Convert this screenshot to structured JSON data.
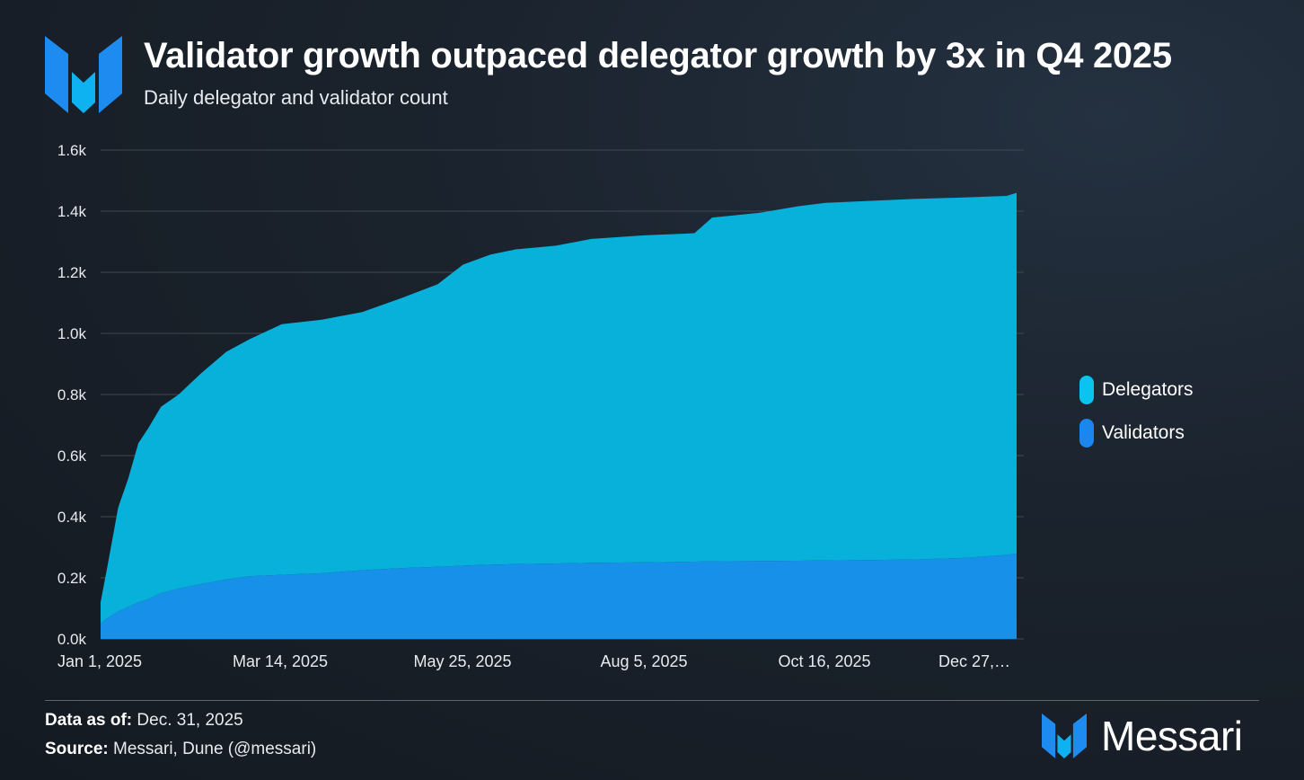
{
  "header": {
    "title": "Validator growth outpaced delegator growth by 3x in Q4 2025",
    "subtitle": "Daily delegator and validator count",
    "logo_icon": "messari-logo-icon"
  },
  "chart_data": {
    "type": "area",
    "stacked": true,
    "x": [
      "Jan 1, 2025",
      "Jan 4, 2025",
      "Jan 8, 2025",
      "Jan 12, 2025",
      "Jan 16, 2025",
      "Jan 20, 2025",
      "Jan 25, 2025",
      "Feb 1, 2025",
      "Feb 10, 2025",
      "Feb 20, 2025",
      "Mar 1, 2025",
      "Mar 14, 2025",
      "Mar 30, 2025",
      "Apr 15, 2025",
      "May 1, 2025",
      "May 15, 2025",
      "May 25, 2025",
      "Jun 5, 2025",
      "Jun 15, 2025",
      "Jul 1, 2025",
      "Jul 15, 2025",
      "Aug 5, 2025",
      "Aug 25, 2025",
      "Sep 1, 2025",
      "Sep 20, 2025",
      "Oct 5, 2025",
      "Oct 16, 2025",
      "Nov 1, 2025",
      "Nov 20, 2025",
      "Dec 10, 2025",
      "Dec 27, 2025",
      "Dec 31, 2025"
    ],
    "series": [
      {
        "name": "Validators",
        "color": "#1690e8",
        "values": [
          50,
          70,
          90,
          105,
          120,
          130,
          150,
          165,
          180,
          195,
          205,
          210,
          215,
          225,
          232,
          236,
          240,
          243,
          245,
          247,
          249,
          251,
          253,
          254,
          255,
          256,
          257,
          258,
          260,
          265,
          275,
          280
        ]
      },
      {
        "name": "Delegators",
        "color": "#07b1d9",
        "values": [
          70,
          180,
          340,
          420,
          520,
          560,
          610,
          635,
          690,
          745,
          775,
          820,
          830,
          845,
          885,
          925,
          985,
          1015,
          1030,
          1040,
          1060,
          1070,
          1075,
          1125,
          1140,
          1160,
          1170,
          1175,
          1180,
          1180,
          1175,
          1180
        ]
      }
    ],
    "totals_note": "",
    "ylim": [
      0,
      1600
    ],
    "yticks": [
      "0.0k",
      "0.2k",
      "0.4k",
      "0.6k",
      "0.8k",
      "1.0k",
      "1.2k",
      "1.4k",
      "1.6k"
    ],
    "xticks": [
      "Jan 1, 2025",
      "Mar 14, 2025",
      "May 25, 2025",
      "Aug 5, 2025",
      "Oct 16, 2025",
      "Dec 27,…"
    ],
    "grid": true,
    "legend_position": "right"
  },
  "legend": [
    {
      "label": "Delegators",
      "color": "#08c4ee"
    },
    {
      "label": "Validators",
      "color": "#1a86ee"
    }
  ],
  "footer": {
    "data_as_of_label": "Data as of:",
    "data_as_of_value": " Dec. 31, 2025",
    "source_label": "Source:",
    "source_value": " Messari, Dune (@messari)",
    "brand_name": "Messari",
    "brand_icon": "messari-logo-icon"
  }
}
